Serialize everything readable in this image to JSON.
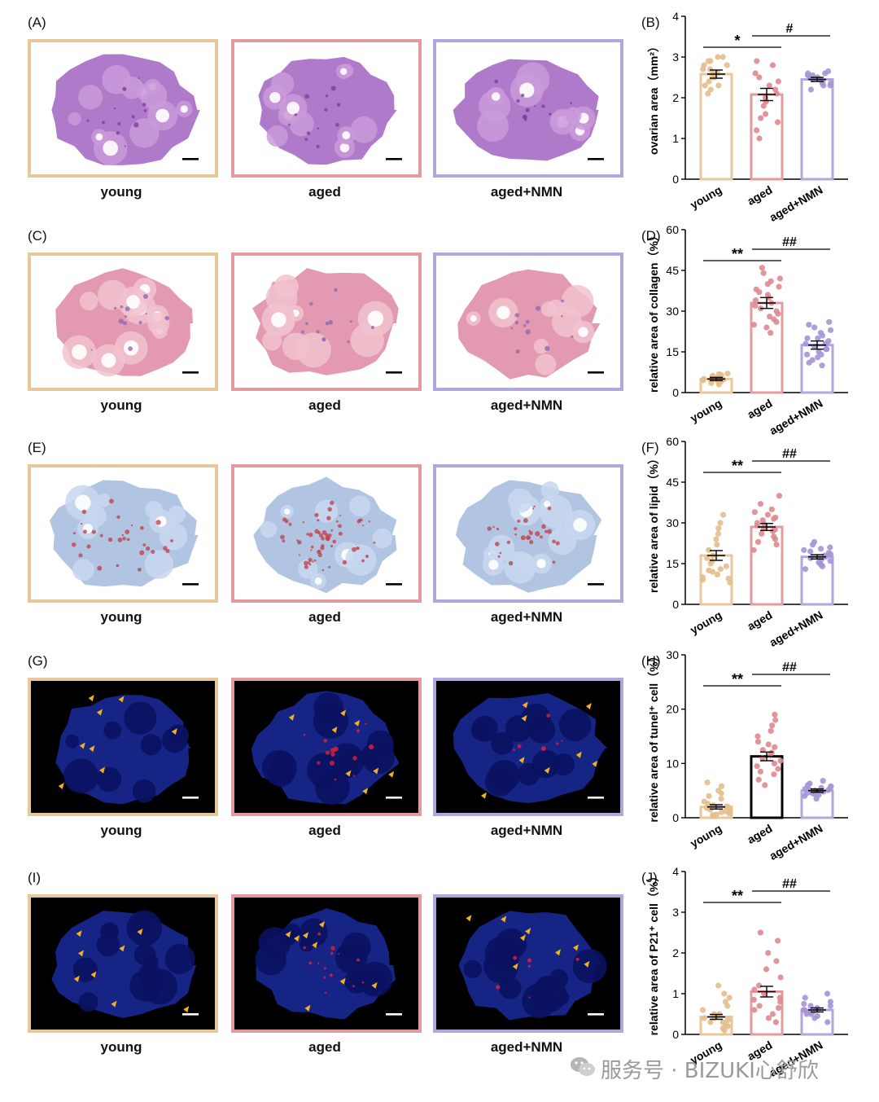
{
  "rows": [
    {
      "letter": "(A)",
      "chart_letter": "(B)",
      "stain": "he",
      "captions": [
        "young",
        "aged",
        "aged+NMN"
      ]
    },
    {
      "letter": "(C)",
      "chart_letter": "(D)",
      "stain": "masson",
      "captions": [
        "young",
        "aged",
        "aged+NMN"
      ]
    },
    {
      "letter": "(E)",
      "chart_letter": "(F)",
      "stain": "oilred",
      "captions": [
        "young",
        "aged",
        "aged+NMN"
      ]
    },
    {
      "letter": "(G)",
      "chart_letter": "(H)",
      "stain": "tunel",
      "captions": [
        "young",
        "aged",
        "aged+NMN"
      ]
    },
    {
      "letter": "(I)",
      "chart_letter": "(J)",
      "stain": "p21",
      "captions": [
        "young",
        "aged",
        "aged+NMN"
      ]
    }
  ],
  "colors": {
    "young": "#e8c79a",
    "aged": "#e39ba0",
    "nmn": "#b3a6dc",
    "young_dot": "#e3be8c",
    "aged_dot": "#de8a90",
    "nmn_dot": "#a595d6"
  },
  "chart_data": [
    {
      "type": "bar",
      "categories": [
        "young",
        "aged",
        "aged+NMN"
      ],
      "values": [
        2.58,
        2.08,
        2.45
      ],
      "errors": [
        0.1,
        0.15,
        0.05
      ],
      "ylabel": "ovarian area（mm²）",
      "ylim": [
        0,
        4
      ],
      "yticks": [
        "0",
        "1",
        "2",
        "3",
        "4"
      ],
      "sig1": "*",
      "sig2": "#",
      "points": [
        [
          2.1,
          2.2,
          2.3,
          2.4,
          2.5,
          2.6,
          2.7,
          2.8,
          2.9,
          3.0,
          3.0,
          2.9,
          2.7,
          2.5,
          2.3,
          2.6,
          2.8
        ],
        [
          1.0,
          1.2,
          1.4,
          1.6,
          1.8,
          2.0,
          2.2,
          2.4,
          2.6,
          2.8,
          2.9,
          2.5,
          2.3,
          1.9,
          1.5,
          2.1
        ],
        [
          2.2,
          2.3,
          2.35,
          2.4,
          2.45,
          2.5,
          2.55,
          2.6,
          2.65,
          2.4,
          2.3,
          2.5,
          2.6,
          2.45,
          2.35,
          2.55
        ]
      ]
    },
    {
      "type": "bar",
      "categories": [
        "young",
        "aged",
        "aged+NMN"
      ],
      "values": [
        5,
        33,
        17.5
      ],
      "errors": [
        0.6,
        2,
        1.5
      ],
      "ylabel": "relative area of collagen（%）",
      "ylim": [
        0,
        60
      ],
      "yticks": [
        "0",
        "15",
        "30",
        "45",
        "60"
      ],
      "sig1": "**",
      "sig2": "##",
      "points": [
        [
          3,
          4,
          5,
          6,
          7,
          4.5,
          5.5,
          6.5,
          3.5,
          4.2,
          5.8,
          6.2,
          4.8,
          5.2,
          3.8,
          6.8,
          4.4,
          5.6,
          5.0,
          6.0
        ],
        [
          22,
          24,
          26,
          28,
          30,
          32,
          34,
          36,
          38,
          40,
          42,
          44,
          46,
          35,
          31,
          29,
          27,
          37,
          33,
          39,
          41,
          25
        ],
        [
          10,
          12,
          14,
          16,
          18,
          20,
          22,
          24,
          26,
          13,
          15,
          17,
          19,
          21,
          23,
          11,
          25,
          18,
          16,
          20,
          14
        ]
      ]
    },
    {
      "type": "bar",
      "categories": [
        "young",
        "aged",
        "aged+NMN"
      ],
      "values": [
        18,
        28.5,
        17.5
      ],
      "errors": [
        1.8,
        1.3,
        0.8
      ],
      "ylabel": "relative area of lipid（%）",
      "ylim": [
        0,
        60
      ],
      "yticks": [
        "0",
        "15",
        "30",
        "45",
        "60"
      ],
      "sig1": "**",
      "sig2": "##",
      "points": [
        [
          8,
          9,
          10,
          11,
          12,
          13,
          14,
          15,
          16,
          18,
          20,
          22,
          24,
          26,
          28,
          30,
          33,
          9.5,
          12.5,
          17
        ],
        [
          20,
          22,
          24,
          25,
          26,
          27,
          28,
          29,
          30,
          31,
          32,
          33,
          34,
          35,
          37,
          40,
          23,
          27.5,
          29.5,
          31.5
        ],
        [
          13,
          14,
          15,
          16,
          17,
          18,
          19,
          20,
          21,
          22,
          23,
          15.5,
          16.5,
          17.5,
          18.5,
          19.5,
          20.5,
          14.5
        ]
      ]
    },
    {
      "type": "bar",
      "categories": [
        "young",
        "aged",
        "aged+NMN"
      ],
      "values": [
        2,
        11.3,
        5
      ],
      "errors": [
        0.4,
        0.8,
        0.3
      ],
      "ylabel": "relative area of tunel⁺ cell（%）",
      "ylim": [
        0,
        30
      ],
      "yticks": [
        "0",
        "10",
        "20",
        "30"
      ],
      "sig1": "**",
      "sig2": "##",
      "points": [
        [
          0.3,
          0.5,
          0.8,
          1.0,
          1.2,
          1.5,
          1.8,
          2.0,
          2.3,
          2.6,
          3.0,
          3.5,
          4.0,
          4.5,
          5.0,
          5.8,
          6.5,
          0.6,
          1.1,
          1.6,
          2.1
        ],
        [
          6,
          7,
          8,
          9,
          10,
          11,
          12,
          13,
          14,
          15,
          16,
          17,
          18,
          19,
          8.5,
          10.5,
          11.5,
          12.5,
          9.5,
          13.5
        ],
        [
          3.5,
          4,
          4.2,
          4.5,
          4.8,
          5,
          5.2,
          5.5,
          5.8,
          6,
          6.3,
          6.8,
          4.4,
          5.1,
          5.6,
          4.6,
          5.3
        ]
      ]
    },
    {
      "type": "bar",
      "categories": [
        "young",
        "aged",
        "aged+NMN"
      ],
      "values": [
        0.43,
        1.05,
        0.6
      ],
      "errors": [
        0.06,
        0.13,
        0.05
      ],
      "ylabel": "relative area of P21⁺ cell（%）",
      "ylim": [
        0,
        4
      ],
      "yticks": [
        "0",
        "1",
        "2",
        "3",
        "4"
      ],
      "sig1": "**",
      "sig2": "##",
      "points": [
        [
          0.1,
          0.15,
          0.2,
          0.25,
          0.3,
          0.35,
          0.4,
          0.45,
          0.5,
          0.6,
          0.7,
          0.8,
          0.9,
          1.0,
          1.2,
          0.3,
          0.5,
          0.4
        ],
        [
          0.3,
          0.4,
          0.5,
          0.6,
          0.7,
          0.8,
          0.9,
          1.0,
          1.2,
          1.4,
          1.6,
          1.8,
          2.0,
          2.3,
          2.5,
          0.85,
          1.1,
          0.65
        ],
        [
          0.3,
          0.4,
          0.45,
          0.5,
          0.55,
          0.6,
          0.65,
          0.7,
          0.75,
          0.8,
          0.9,
          1.0,
          0.5,
          0.6,
          0.7,
          0.55
        ]
      ]
    }
  ],
  "watermark": {
    "text": "服务号 · BIZUKI心舒欣"
  }
}
